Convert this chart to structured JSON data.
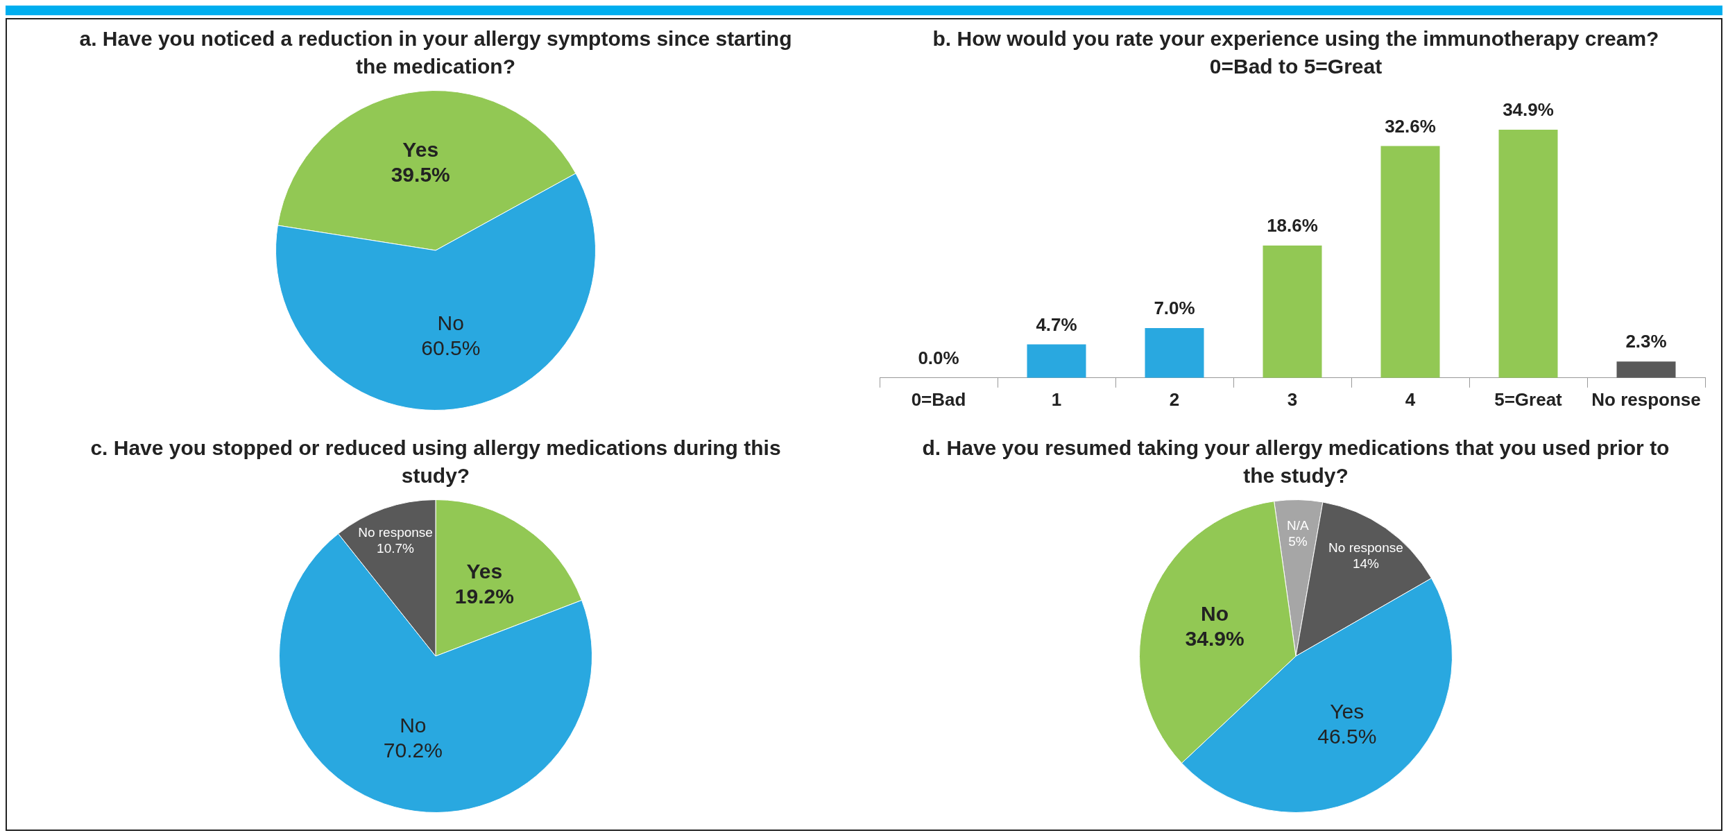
{
  "chart_data": [
    {
      "type": "pie",
      "title": "a. Have you noticed a reduction in your allergy symptoms since starting the medication?",
      "categories": [
        "Yes",
        "No"
      ],
      "values": [
        39.5,
        60.5
      ],
      "colors": [
        "#92c854",
        "#29a8e0"
      ],
      "value_labels": [
        "39.5%",
        "60.5%"
      ]
    },
    {
      "type": "bar",
      "title": "b. How would you rate your experience using the immunotherapy cream?\n0=Bad to 5=Great",
      "categories": [
        "0=Bad",
        "1",
        "2",
        "3",
        "4",
        "5=Great",
        "No response"
      ],
      "values": [
        0,
        4.7,
        7.0,
        18.6,
        32.6,
        34.9,
        2.3
      ],
      "colors": [
        "#29a8e0",
        "#29a8e0",
        "#29a8e0",
        "#92c854",
        "#92c854",
        "#92c854",
        "#595959"
      ],
      "value_labels": [
        "0.0%",
        "4.7%",
        "7.0%",
        "18.6%",
        "32.6%",
        "34.9%",
        "2.3%"
      ]
    },
    {
      "type": "pie",
      "title": "c. Have you stopped or reduced using allergy medications during this study?",
      "categories": [
        "Yes",
        "No",
        "No response"
      ],
      "values": [
        19.2,
        70.2,
        10.7
      ],
      "colors": [
        "#92c854",
        "#29a8e0",
        "#595959"
      ],
      "value_labels": [
        "19.2%",
        "70.2%",
        "10.7%"
      ]
    },
    {
      "type": "pie",
      "title": "d. Have you resumed taking your allergy medications that you used prior to the study?",
      "categories": [
        "N/A",
        "No response",
        "Yes",
        "No"
      ],
      "values": [
        5,
        14,
        46.5,
        34.9
      ],
      "colors": [
        "#a6a6a6",
        "#595959",
        "#29a8e0",
        "#92c854"
      ],
      "value_labels": [
        "5%",
        "14%",
        "46.5%",
        "34.9%"
      ]
    }
  ]
}
